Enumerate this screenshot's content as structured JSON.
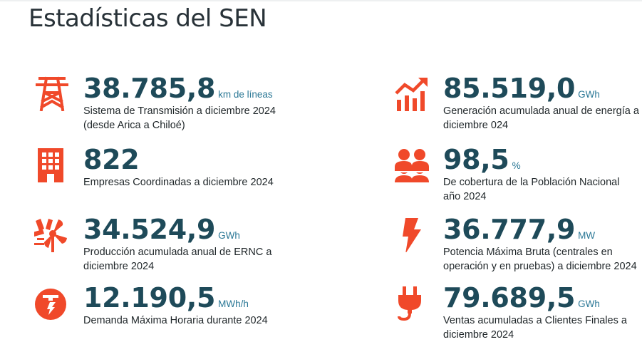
{
  "page": {
    "title": "Estadísticas del SEN"
  },
  "colors": {
    "accent": "#f0492a",
    "value": "#1e4a59",
    "unit": "#2b7896"
  },
  "stats": [
    {
      "icon": "transmission-tower-icon",
      "value": "38.785,8",
      "unit": "km de líneas",
      "desc_line1": "Sistema de Transmisión a diciembre 2024",
      "desc_line2": "(desde Arica a Chiloé)"
    },
    {
      "icon": "rising-bar-chart-icon",
      "value": "85.519,0",
      "unit": "GWh",
      "desc_line1": "Generación acumulada anual de energía a",
      "desc_line2": "diciembre 024"
    },
    {
      "icon": "building-icon",
      "value": "822",
      "unit": "",
      "desc_line1": "Empresas Coordinadas a diciembre 2024",
      "desc_line2": ""
    },
    {
      "icon": "population-icon",
      "value": "98,5",
      "unit": "%",
      "desc_line1": "De cobertura de la Población Nacional",
      "desc_line2": "año 2024"
    },
    {
      "icon": "wind-solar-icon",
      "value": "34.524,9",
      "unit": "GWh",
      "desc_line1": "Producción acumulada anual de ERNC a",
      "desc_line2": "diciembre 2024"
    },
    {
      "icon": "lightning-bolt-icon",
      "value": "36.777,9",
      "unit": "MW",
      "desc_line1": "Potencia Máxima Bruta (centrales en",
      "desc_line2": "operación y en pruebas) a diciembre 2024"
    },
    {
      "icon": "power-demand-icon",
      "value": "12.190,5",
      "unit": "MWh/h",
      "desc_line1": "Demanda Máxima Horaria durante 2024",
      "desc_line2": ""
    },
    {
      "icon": "power-plug-icon",
      "value": "79.689,5",
      "unit": "GWh",
      "desc_line1": "Ventas acumuladas a Clientes Finales a",
      "desc_line2": "diciembre 2024"
    }
  ]
}
